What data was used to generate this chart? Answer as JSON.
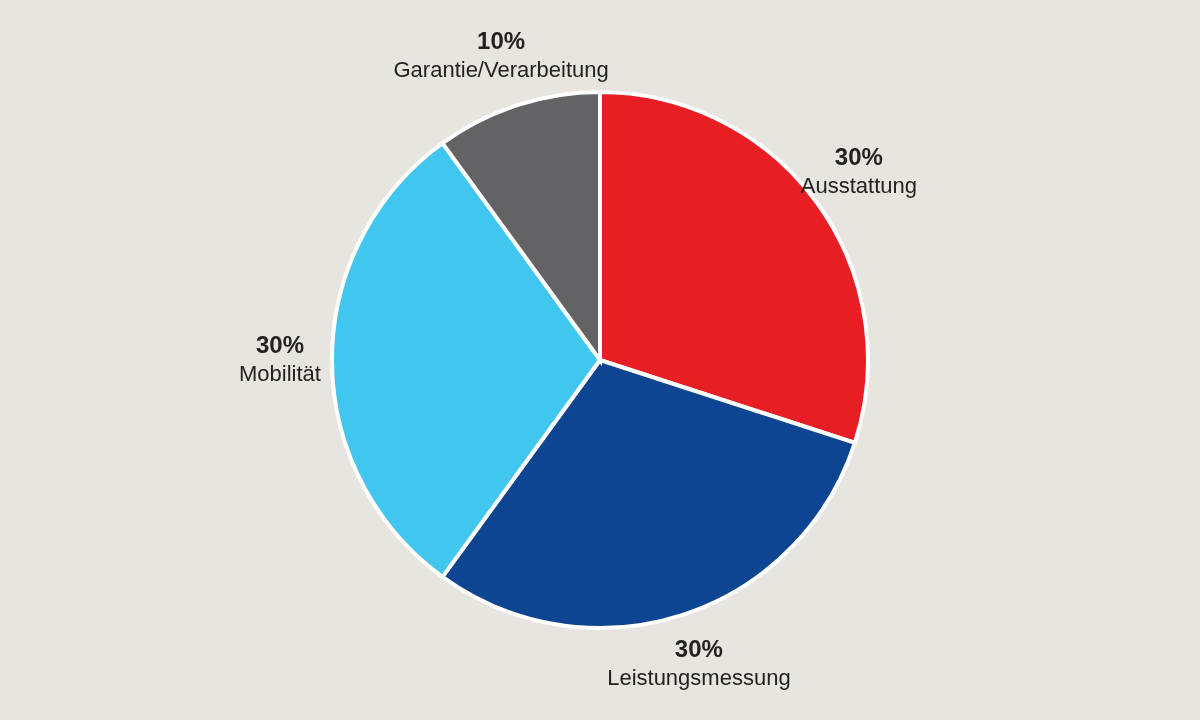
{
  "chart_data": {
    "type": "pie",
    "categories": [
      "Ausstattung",
      "Leistungsmessung",
      "Mobilität",
      "Garantie/Verarbeitung"
    ],
    "values": [
      30,
      30,
      30,
      10
    ],
    "value_labels": [
      "30%",
      "30%",
      "30%",
      "10%"
    ],
    "colors": [
      "#e81e25",
      "#0e4592",
      "#41c6f0",
      "#636366"
    ]
  }
}
